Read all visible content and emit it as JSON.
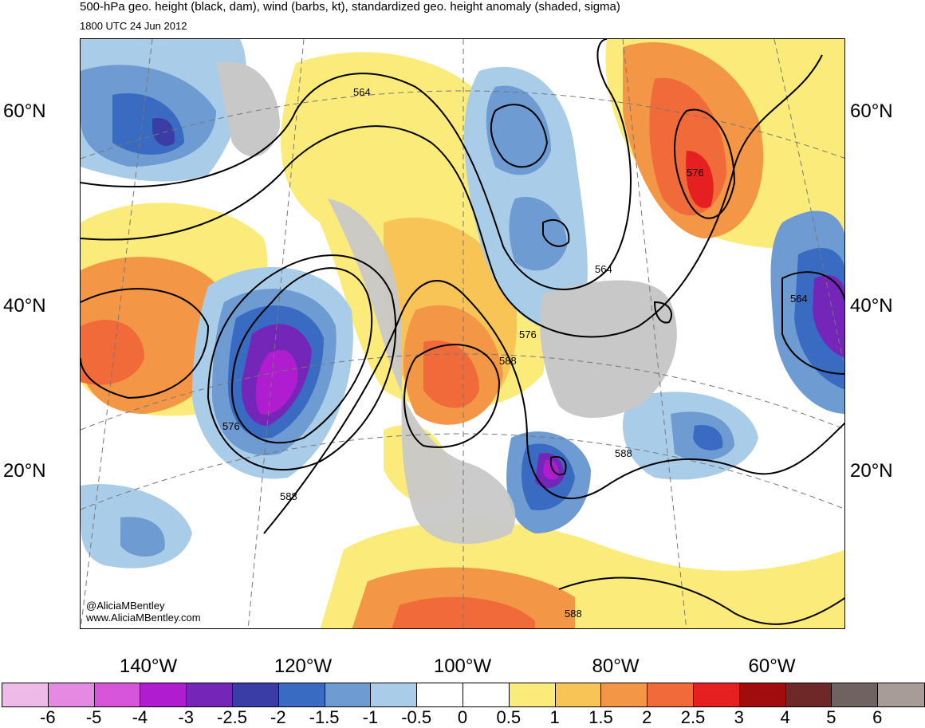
{
  "header": {
    "title": "500-hPa geo. height (black, dam), wind (barbs, kt), standardized geo. height anomaly (shaded, sigma)",
    "valid_time": "1800 UTC 24 Jun 2012"
  },
  "map": {
    "lat_labels": [
      "60°N",
      "40°N",
      "20°N"
    ],
    "lon_labels": [
      "140°W",
      "120°W",
      "100°W",
      "80°W",
      "60°W"
    ],
    "contour_labels": [
      "564",
      "576",
      "564",
      "576",
      "588",
      "576",
      "588",
      "564",
      "588",
      "588"
    ],
    "credit": {
      "handle": "@AliciaMBentley",
      "website": "www.AliciaMBentley.com"
    }
  },
  "colorbar": {
    "labels": [
      "-6",
      "-5",
      "-4",
      "-3",
      "-2.5",
      "-2",
      "-1.5",
      "-1",
      "-0.5",
      "0",
      "0.5",
      "1",
      "1.5",
      "2",
      "2.5",
      "3",
      "4",
      "5",
      "6"
    ],
    "colors": [
      "#eebbe8",
      "#e58ae3",
      "#d655d9",
      "#b01ccf",
      "#7426b8",
      "#3b3da7",
      "#3a6bc2",
      "#6d9bd2",
      "#a9cde9",
      "#ffffff",
      "#ffffff",
      "#fbeb7a",
      "#f7c455",
      "#f39645",
      "#f06a3a",
      "#e62020",
      "#a10d0d",
      "#6e2828",
      "#706260",
      "#a89c99"
    ]
  }
}
